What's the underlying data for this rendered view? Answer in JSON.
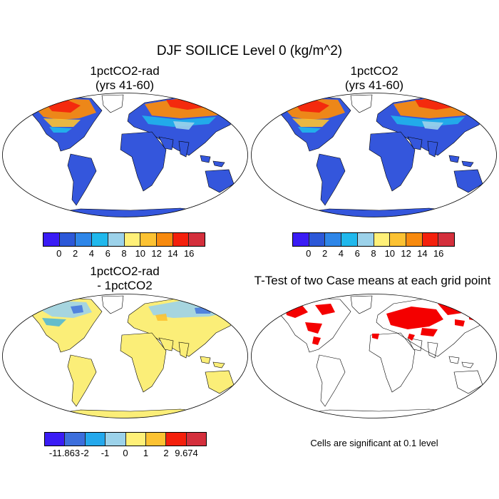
{
  "title": "DJF SOILICE Level 0 (kg/m^2)",
  "panels": [
    {
      "title_line1": "1pctCO2-rad",
      "title_line2": "(yrs 41-60)"
    },
    {
      "title_line1": "1pctCO2",
      "title_line2": "(yrs 41-60)"
    },
    {
      "title_line1": "1pctCO2-rad",
      "title_line2": "- 1pctCO2"
    },
    {
      "title_line1": "T-Test of two Case means at each grid point"
    }
  ],
  "colorbar_main": {
    "labels": [
      "0",
      "2",
      "4",
      "6",
      "8",
      "10",
      "12",
      "14",
      "16"
    ],
    "colors": [
      "#3a1cf5",
      "#2c58d8",
      "#2e86e8",
      "#20b8ec",
      "#9cd2ea",
      "#fff078",
      "#fcc232",
      "#f88a0e",
      "#f4200c",
      "#d42f3c"
    ]
  },
  "colorbar_diff": {
    "labels": [
      "-11.863",
      "-2",
      "-1",
      "0",
      "1",
      "2",
      "9.674"
    ],
    "colors": [
      "#3a1cf5",
      "#3c6edc",
      "#24a8ec",
      "#9cd2ea",
      "#fff078",
      "#fcc232",
      "#f4200c",
      "#d42f3c"
    ]
  },
  "significance_note": "Cells are significant at 0.1 level",
  "colors": {
    "ocean": "#ffffff",
    "land_low": "#3456dc",
    "diff_neutral": "#fbee78",
    "significant": "#f40000"
  }
}
